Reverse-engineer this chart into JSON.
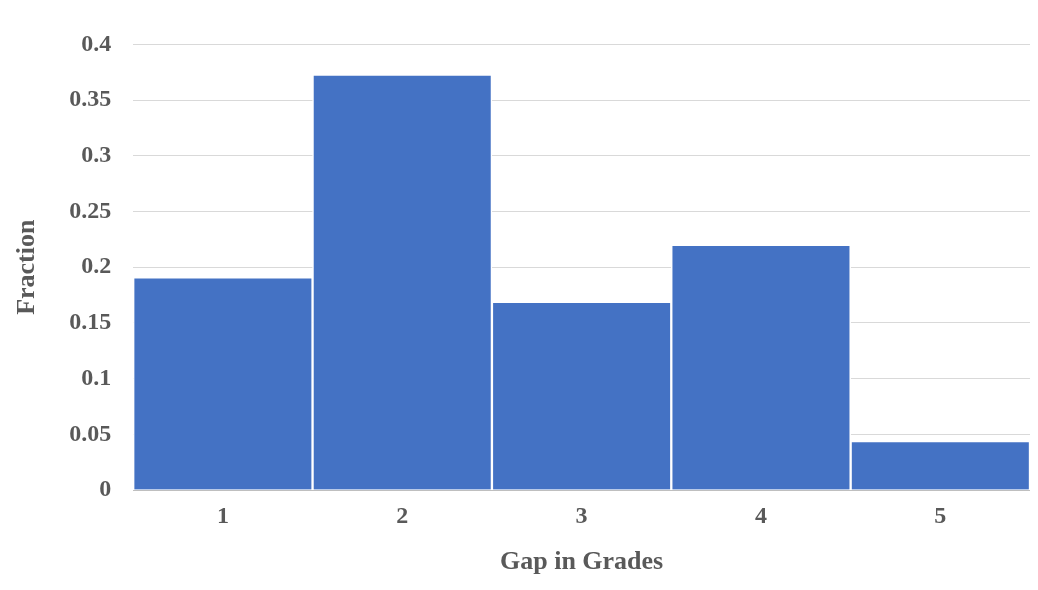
{
  "chart_data": {
    "type": "bar",
    "xlabel": "Gap in Grades",
    "ylabel": "Fraction",
    "categories": [
      "1",
      "2",
      "3",
      "4",
      "5"
    ],
    "values": [
      0.191,
      0.373,
      0.169,
      0.22,
      0.044
    ],
    "color": "#4472c4",
    "ylim": [
      0,
      0.4
    ],
    "yticks": [
      0,
      0.05,
      0.1,
      0.15,
      0.2,
      0.25,
      0.3,
      0.35,
      0.4
    ],
    "grid": "y",
    "legend": false
  }
}
